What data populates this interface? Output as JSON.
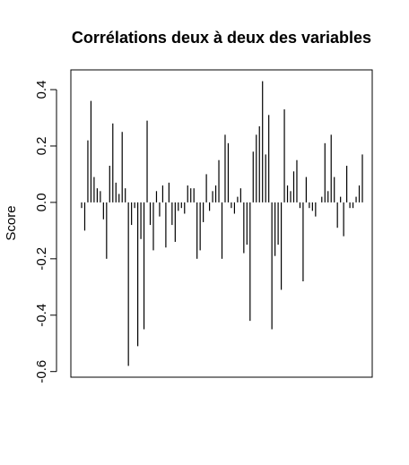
{
  "chart_data": {
    "type": "bar",
    "title": "Corrélations deux à deux des variables",
    "xlabel": "",
    "ylabel": "Score",
    "ylim": [
      -0.62,
      0.47
    ],
    "yticks": [
      -0.6,
      -0.4,
      -0.2,
      0.0,
      0.2,
      0.4
    ],
    "ytick_labels": [
      "-0.6",
      "-0.4",
      "-0.2",
      "0.0",
      "0.2",
      "0.4"
    ],
    "grid": false,
    "bar_color": "#000000",
    "values": [
      -0.02,
      -0.1,
      0.22,
      0.36,
      0.09,
      0.05,
      0.04,
      -0.06,
      -0.2,
      0.13,
      0.28,
      0.07,
      0.03,
      0.25,
      0.05,
      -0.58,
      -0.08,
      -0.02,
      -0.51,
      -0.13,
      -0.45,
      0.29,
      -0.08,
      -0.17,
      0.04,
      -0.05,
      0.06,
      -0.16,
      0.07,
      -0.08,
      -0.14,
      -0.03,
      -0.02,
      -0.04,
      0.06,
      0.05,
      0.05,
      -0.2,
      -0.17,
      -0.07,
      0.1,
      -0.03,
      0.04,
      0.06,
      0.15,
      -0.2,
      0.24,
      0.21,
      -0.02,
      -0.04,
      0.02,
      0.05,
      -0.18,
      -0.15,
      -0.42,
      0.18,
      0.24,
      0.27,
      0.43,
      0.17,
      0.31,
      -0.45,
      -0.19,
      -0.15,
      -0.31,
      0.33,
      0.06,
      0.04,
      0.11,
      0.15,
      -0.02,
      -0.28,
      0.09,
      -0.02,
      -0.03,
      -0.05,
      0.0,
      0.02,
      0.21,
      0.04,
      0.24,
      0.09,
      -0.09,
      0.02,
      -0.12,
      0.13,
      -0.02,
      -0.02,
      0.02,
      0.06,
      0.17
    ]
  }
}
